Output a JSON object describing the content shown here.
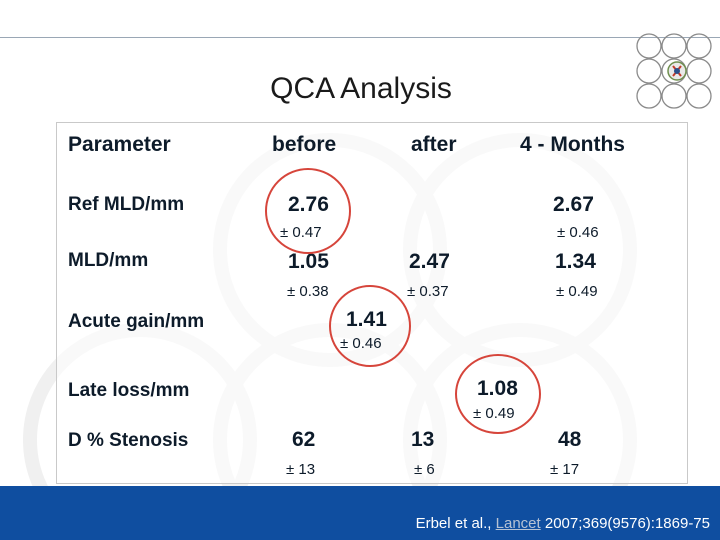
{
  "slide": {
    "title": "QCA Analysis",
    "citation": {
      "pre": "Erbel et al., ",
      "journal": "Lancet",
      "post": " 2007;369(9576):1869-75"
    }
  },
  "table": {
    "headers": [
      "Parameter",
      "before",
      "after",
      "4 - Months"
    ],
    "rows": [
      {
        "label": "Ref MLD/mm",
        "before": "2.76",
        "before_sd": "± 0.47",
        "months": "2.67",
        "months_sd": "± 0.46"
      },
      {
        "label": "MLD/mm",
        "before": "1.05",
        "before_sd": "± 0.38",
        "after": "2.47",
        "after_sd": "± 0.37",
        "months": "1.34",
        "months_sd": "± 0.49"
      },
      {
        "label": "Acute gain/mm",
        "value": "1.41",
        "value_sd": "± 0.46"
      },
      {
        "label": "Late loss/mm",
        "value": "1.08",
        "value_sd": "± 0.49"
      },
      {
        "label": "D  % Stenosis",
        "before": "62",
        "before_sd": "± 13",
        "after": "13",
        "after_sd": "± 6",
        "months": "48",
        "months_sd": "± 17"
      }
    ]
  },
  "colors": {
    "footer": "#0f4ea0",
    "highlight_ring": "#d6453b",
    "text": "#0d1b2a"
  }
}
